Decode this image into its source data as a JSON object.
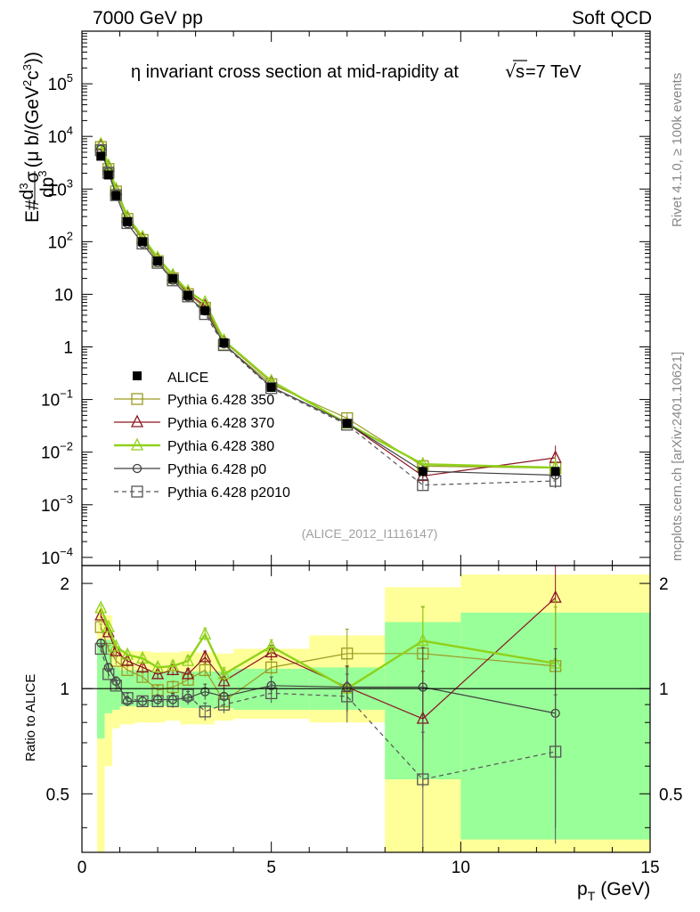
{
  "header": {
    "left": "7000 GeV pp",
    "right": "Soft QCD",
    "side_rivet": "Rivet 4.1.0, ≥ 100k events",
    "side_mcplots": "mcplots.cern.ch [arXiv:2401.10621]"
  },
  "colors": {
    "alice": "#000000",
    "p350": "#9a9a22",
    "p370": "#8b1422",
    "p380": "#8fd11a",
    "p0": "#404040",
    "p2010": "#555555",
    "band_inner": "#99ff99",
    "band_outer": "#ffff99"
  },
  "chart_data": {
    "type": "line",
    "title_prefix": "η invariant cross section at mid-rapidity at",
    "title_sqrt": "s",
    "title_suffix": "=7 TeV",
    "ylabel_main": "E#d³σ/dp³ (μ b/(GeV²c³))",
    "ylabel_main_parts": {
      "e": "E#",
      "d": "d",
      "sup3": "3",
      "sigma": "σ",
      "dp": "dp",
      "unit": "(μ b/(GeV",
      "two": "2",
      "c": "c",
      "three": "3",
      "close": "))"
    },
    "ylabel_ratio": "Ratio to ALICE",
    "xlabel_main": "p",
    "xlabel_sub": "T",
    "xlabel_unit": "(GeV)",
    "analysis_tag": "(ALICE_2012_I1116147)",
    "xlim": [
      0,
      15
    ],
    "ylim_main": [
      7e-05,
      1000000
    ],
    "ylim_ratio": [
      0.34,
      2.25
    ],
    "x_ticks": [
      "0",
      "5",
      "10",
      "15"
    ],
    "y_ticks_main": [
      {
        "v": 0.0001,
        "m": "10",
        "e": "−4"
      },
      {
        "v": 0.001,
        "m": "10",
        "e": "−3"
      },
      {
        "v": 0.01,
        "m": "10",
        "e": "−2"
      },
      {
        "v": 0.1,
        "m": "10",
        "e": "−1"
      },
      {
        "v": 1,
        "m": "1",
        "e": ""
      },
      {
        "v": 10,
        "m": "10",
        "e": ""
      },
      {
        "v": 100,
        "m": "10",
        "e": "2"
      },
      {
        "v": 1000,
        "m": "10",
        "e": "3"
      },
      {
        "v": 10000,
        "m": "10",
        "e": "4"
      },
      {
        "v": 100000,
        "m": "10",
        "e": "5"
      }
    ],
    "y_ticks_ratio": [
      {
        "v": 0.5,
        "l": "0.5"
      },
      {
        "v": 1,
        "l": "1"
      },
      {
        "v": 2,
        "l": "2"
      }
    ],
    "bins": [
      {
        "lo": 0.4,
        "hi": 0.6
      },
      {
        "lo": 0.6,
        "hi": 0.8
      },
      {
        "lo": 0.8,
        "hi": 1.0
      },
      {
        "lo": 1.0,
        "hi": 1.4
      },
      {
        "lo": 1.4,
        "hi": 1.8
      },
      {
        "lo": 1.8,
        "hi": 2.2
      },
      {
        "lo": 2.2,
        "hi": 2.6
      },
      {
        "lo": 2.6,
        "hi": 3.0
      },
      {
        "lo": 3.0,
        "hi": 3.5
      },
      {
        "lo": 3.5,
        "hi": 4.0
      },
      {
        "lo": 4.0,
        "hi": 6.0
      },
      {
        "lo": 6.0,
        "hi": 8.0
      },
      {
        "lo": 8.0,
        "hi": 10.0
      },
      {
        "lo": 10.0,
        "hi": 15.0
      }
    ],
    "band_inner": [
      [
        0.72,
        1.38
      ],
      [
        0.85,
        1.38
      ],
      [
        0.87,
        1.15
      ],
      [
        0.89,
        1.13
      ],
      [
        0.89,
        1.13
      ],
      [
        0.89,
        1.12
      ],
      [
        0.89,
        1.12
      ],
      [
        0.88,
        1.12
      ],
      [
        0.88,
        1.12
      ],
      [
        0.88,
        1.12
      ],
      [
        0.87,
        1.14
      ],
      [
        0.87,
        1.15
      ],
      [
        0.55,
        1.55
      ],
      [
        0.37,
        1.65
      ]
    ],
    "band_outer": [
      [
        0.34,
        1.7
      ],
      [
        0.6,
        1.62
      ],
      [
        0.77,
        1.32
      ],
      [
        0.79,
        1.28
      ],
      [
        0.8,
        1.28
      ],
      [
        0.8,
        1.27
      ],
      [
        0.81,
        1.27
      ],
      [
        0.79,
        1.28
      ],
      [
        0.79,
        1.27
      ],
      [
        0.81,
        1.26
      ],
      [
        0.82,
        1.3
      ],
      [
        0.8,
        1.42
      ],
      [
        0.34,
        1.95
      ],
      [
        0.34,
        2.12
      ]
    ],
    "alice": {
      "name": "ALICE",
      "x": [
        0.5,
        0.7,
        0.9,
        1.2,
        1.6,
        2.0,
        2.4,
        2.8,
        3.25,
        3.75,
        5.0,
        7.0,
        9.0,
        12.5
      ],
      "y": [
        4200,
        1850,
        750,
        240,
        100,
        43,
        20,
        9.5,
        4.9,
        1.2,
        0.17,
        0.035,
        0.0043,
        0.0043
      ]
    },
    "series": [
      {
        "name": "Pythia 6.428 350",
        "color_key": "p350",
        "marker": "square",
        "dashed": false,
        "width": 1.2,
        "x": [
          0.5,
          0.7,
          0.9,
          1.2,
          1.6,
          2.0,
          2.4,
          2.8,
          3.25,
          3.75,
          5.0,
          7.0,
          9.0,
          12.5
        ],
        "ratio": [
          1.5,
          1.3,
          1.2,
          1.13,
          1.08,
          0.99,
          1.01,
          1.06,
          1.13,
          0.92,
          1.15,
          1.26,
          1.26,
          1.16
        ],
        "rerr": [
          0.03,
          0.03,
          0.03,
          0.03,
          0.03,
          0.03,
          0.04,
          0.04,
          0.05,
          0.05,
          0.06,
          0.22,
          0.45,
          0.55
        ]
      },
      {
        "name": "Pythia 6.428 370",
        "color_key": "p370",
        "marker": "triangle",
        "dashed": false,
        "width": 1.2,
        "x": [
          0.5,
          0.7,
          0.9,
          1.2,
          1.6,
          2.0,
          2.4,
          2.8,
          3.25,
          3.75,
          5.0,
          7.0,
          9.0,
          12.5
        ],
        "ratio": [
          1.62,
          1.45,
          1.28,
          1.2,
          1.15,
          1.1,
          1.13,
          1.1,
          1.23,
          1.05,
          1.27,
          1.01,
          0.82,
          1.82
        ],
        "rerr": [
          0.03,
          0.03,
          0.03,
          0.03,
          0.03,
          0.03,
          0.04,
          0.04,
          0.05,
          0.05,
          0.06,
          0.15,
          0.3,
          0.7
        ]
      },
      {
        "name": "Pythia 6.428 380",
        "color_key": "p380",
        "marker": "triangle",
        "dashed": false,
        "width": 2.4,
        "x": [
          0.5,
          0.7,
          0.9,
          1.2,
          1.6,
          2.0,
          2.4,
          2.8,
          3.25,
          3.75,
          5.0,
          7.0,
          9.0,
          12.5
        ],
        "ratio": [
          1.7,
          1.5,
          1.32,
          1.25,
          1.22,
          1.15,
          1.16,
          1.2,
          1.43,
          1.1,
          1.32,
          1.0,
          1.37,
          1.18
        ],
        "rerr": [
          0.03,
          0.03,
          0.03,
          0.03,
          0.03,
          0.03,
          0.04,
          0.04,
          0.06,
          0.05,
          0.06,
          0.15,
          0.35,
          0.6
        ]
      },
      {
        "name": "Pythia 6.428 p0",
        "color_key": "p0",
        "marker": "circle",
        "dashed": false,
        "width": 1.2,
        "x": [
          0.5,
          0.7,
          0.9,
          1.2,
          1.6,
          2.0,
          2.4,
          2.8,
          3.25,
          3.75,
          5.0,
          7.0,
          9.0,
          12.5
        ],
        "ratio": [
          1.35,
          1.15,
          1.05,
          0.92,
          0.92,
          0.93,
          0.93,
          0.94,
          0.98,
          0.95,
          1.02,
          1.01,
          1.01,
          0.85
        ],
        "rerr": [
          0.03,
          0.03,
          0.03,
          0.03,
          0.03,
          0.03,
          0.04,
          0.04,
          0.05,
          0.05,
          0.06,
          0.15,
          0.3,
          0.45
        ]
      },
      {
        "name": "Pythia 6.428 p2010",
        "color_key": "p2010",
        "marker": "square",
        "dashed": true,
        "width": 1.2,
        "x": [
          0.5,
          0.7,
          0.9,
          1.2,
          1.6,
          2.0,
          2.4,
          2.8,
          3.25,
          3.75,
          5.0,
          7.0,
          9.0,
          12.5
        ],
        "ratio": [
          1.3,
          1.1,
          1.02,
          0.94,
          0.92,
          0.92,
          0.92,
          0.96,
          0.86,
          0.9,
          0.97,
          0.95,
          0.55,
          0.66
        ],
        "rerr": [
          0.03,
          0.03,
          0.03,
          0.03,
          0.03,
          0.03,
          0.04,
          0.04,
          0.05,
          0.05,
          0.06,
          0.15,
          0.2,
          0.3
        ]
      }
    ]
  }
}
